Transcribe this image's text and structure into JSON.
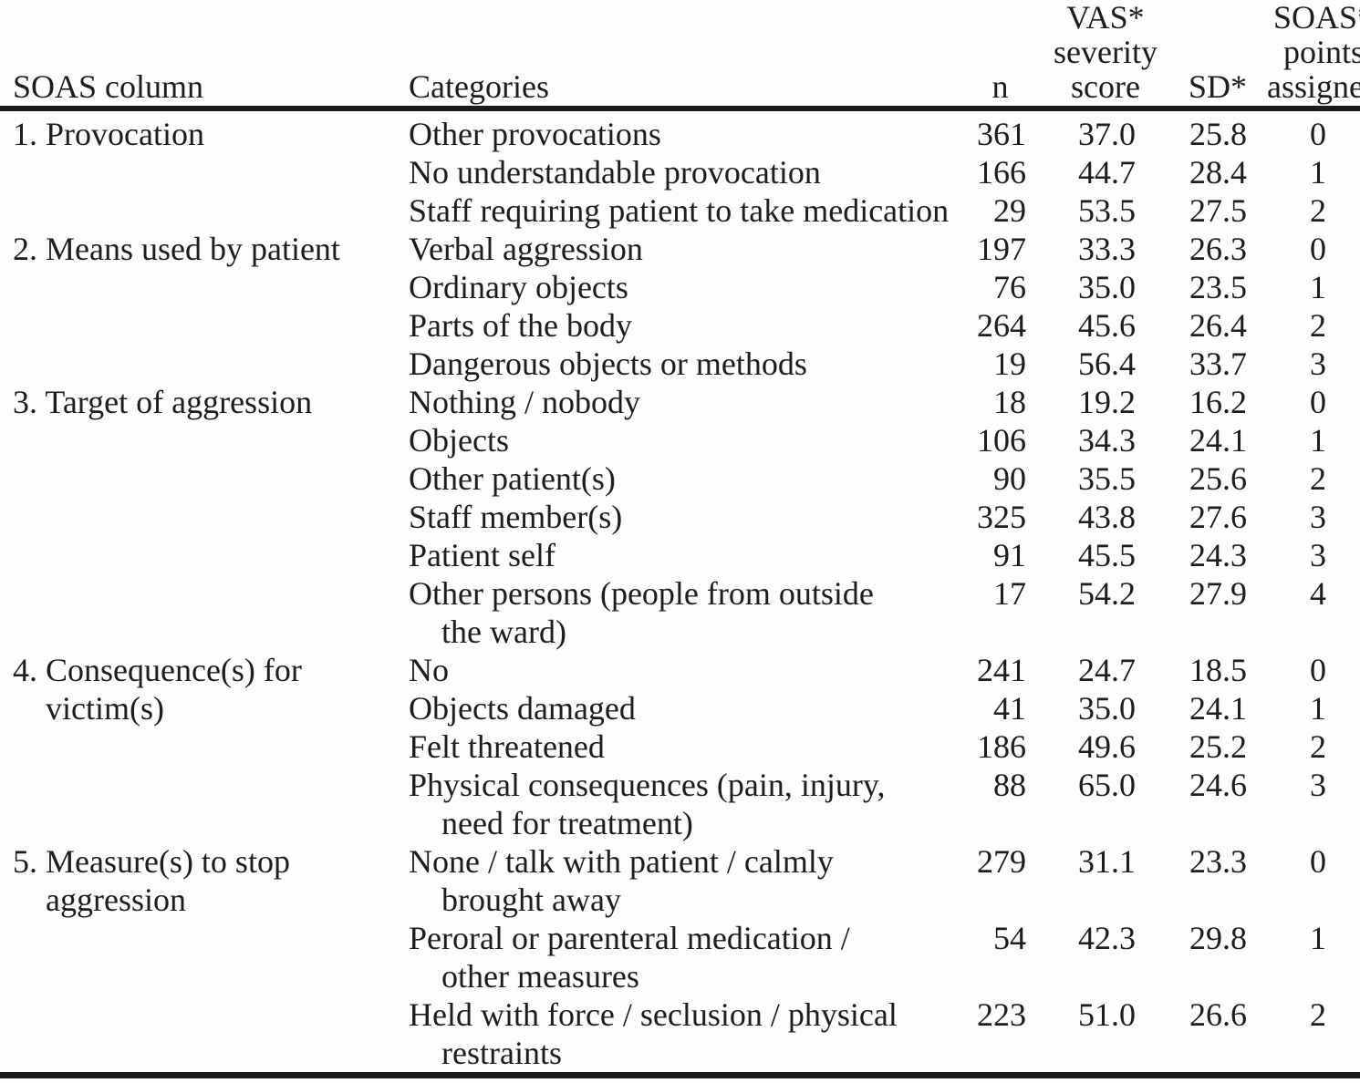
{
  "colors": {
    "background": "#fdfdfd",
    "text": "#1d1d1d",
    "rule": "#1b1b1b"
  },
  "header": {
    "soas_column": "SOAS column",
    "categories": "Categories",
    "n": "n",
    "vas_lines": [
      "VAS*",
      "severity",
      "score"
    ],
    "sd": "SD*",
    "soas_points_lines": [
      "SOAS*",
      "points",
      "assigned"
    ]
  },
  "rows": [
    {
      "soas_column": [
        "1. Provocation"
      ],
      "category": [
        "Other provocations"
      ],
      "n": "361",
      "vas": "37.0",
      "sd": "25.8",
      "points": "0"
    },
    {
      "soas_column": [],
      "category": [
        "No understandable provocation"
      ],
      "n": "166",
      "vas": "44.7",
      "sd": "28.4",
      "points": "1"
    },
    {
      "soas_column": [],
      "category": [
        "Staff requiring patient to take medication"
      ],
      "n": "29",
      "vas": "53.5",
      "sd": "27.5",
      "points": "2"
    },
    {
      "soas_column": [
        "2. Means used by patient"
      ],
      "category": [
        "Verbal aggression"
      ],
      "n": "197",
      "vas": "33.3",
      "sd": "26.3",
      "points": "0"
    },
    {
      "soas_column": [],
      "category": [
        "Ordinary objects"
      ],
      "n": "76",
      "vas": "35.0",
      "sd": "23.5",
      "points": "1"
    },
    {
      "soas_column": [],
      "category": [
        "Parts of the body"
      ],
      "n": "264",
      "vas": "45.6",
      "sd": "26.4",
      "points": "2"
    },
    {
      "soas_column": [],
      "category": [
        "Dangerous objects or methods"
      ],
      "n": "19",
      "vas": "56.4",
      "sd": "33.7",
      "points": "3"
    },
    {
      "soas_column": [
        "3. Target of aggression"
      ],
      "category": [
        "Nothing / nobody"
      ],
      "n": "18",
      "vas": "19.2",
      "sd": "16.2",
      "points": "0"
    },
    {
      "soas_column": [],
      "category": [
        "Objects"
      ],
      "n": "106",
      "vas": "34.3",
      "sd": "24.1",
      "points": "1"
    },
    {
      "soas_column": [],
      "category": [
        "Other patient(s)"
      ],
      "n": "90",
      "vas": "35.5",
      "sd": "25.6",
      "points": "2"
    },
    {
      "soas_column": [],
      "category": [
        "Staff member(s)"
      ],
      "n": "325",
      "vas": "43.8",
      "sd": "27.6",
      "points": "3"
    },
    {
      "soas_column": [],
      "category": [
        "Patient self"
      ],
      "n": "91",
      "vas": "45.5",
      "sd": "24.3",
      "points": "3"
    },
    {
      "soas_column": [],
      "category": [
        "Other persons (people from outside",
        "the ward)"
      ],
      "n": "17",
      "vas": "54.2",
      "sd": "27.9",
      "points": "4"
    },
    {
      "soas_column": [
        "4. Consequence(s) for",
        "victim(s)"
      ],
      "category": [
        "No"
      ],
      "n": "241",
      "vas": "24.7",
      "sd": "18.5",
      "points": "0"
    },
    {
      "soas_column": [],
      "category": [
        "Objects damaged"
      ],
      "n": "41",
      "vas": "35.0",
      "sd": "24.1",
      "points": "1"
    },
    {
      "soas_column": [],
      "category": [
        "Felt threatened"
      ],
      "n": "186",
      "vas": "49.6",
      "sd": "25.2",
      "points": "2"
    },
    {
      "soas_column": [],
      "category": [
        "Physical consequences (pain, injury,",
        "need for treatment)"
      ],
      "n": "88",
      "vas": "65.0",
      "sd": "24.6",
      "points": "3"
    },
    {
      "soas_column": [
        "5. Measure(s) to stop",
        "aggression"
      ],
      "category": [
        "None / talk with patient / calmly",
        "brought away"
      ],
      "n": "279",
      "vas": "31.1",
      "sd": "23.3",
      "points": "0"
    },
    {
      "soas_column": [],
      "category": [
        "Peroral or parenteral medication /",
        "other measures"
      ],
      "n": "54",
      "vas": "42.3",
      "sd": "29.8",
      "points": "1"
    },
    {
      "soas_column": [],
      "category": [
        "Held with force / seclusion / physical",
        "restraints"
      ],
      "n": "223",
      "vas": "51.0",
      "sd": "26.6",
      "points": "2"
    }
  ]
}
